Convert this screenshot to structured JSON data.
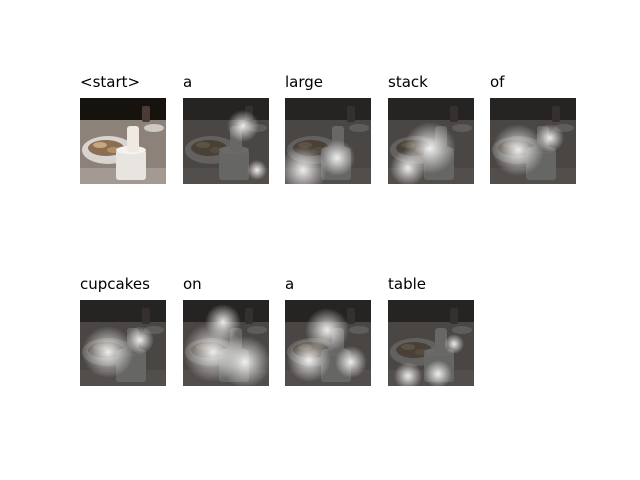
{
  "figure": {
    "tokens": [
      {
        "word": "<start>",
        "attention_peak": null
      },
      {
        "word": "a",
        "attention_peak": "upper-right"
      },
      {
        "word": "large",
        "attention_peak": "lower-left"
      },
      {
        "word": "stack",
        "attention_peak": "center"
      },
      {
        "word": "of",
        "attention_peak": "center-left"
      },
      {
        "word": "cupcakes",
        "attention_peak": "center-left"
      },
      {
        "word": "on",
        "attention_peak": "broad-lower"
      },
      {
        "word": "a",
        "attention_peak": "upper-center"
      },
      {
        "word": "table",
        "attention_peak": "lower-center"
      }
    ]
  }
}
